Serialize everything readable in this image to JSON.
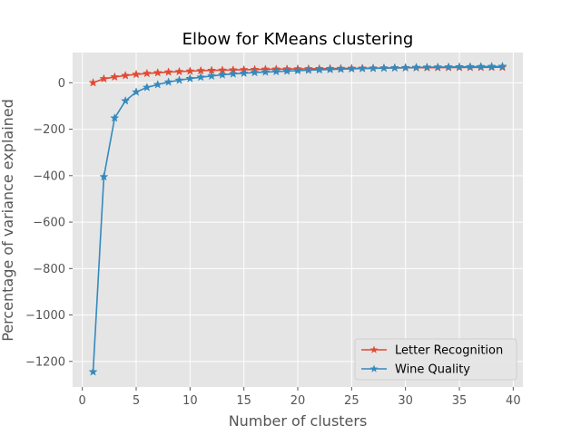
{
  "chart_data": {
    "type": "line",
    "title": "Elbow for KMeans clustering",
    "xlabel": "Number of clusters",
    "ylabel": "Percentage of variance explained",
    "xlim": [
      -0.9,
      40.9
    ],
    "ylim": [
      -1310,
      130
    ],
    "xticks": [
      0,
      5,
      10,
      15,
      20,
      25,
      30,
      35,
      40
    ],
    "yticks": [
      0,
      -200,
      -400,
      -600,
      -800,
      -1000,
      -1200
    ],
    "ytick_labels": [
      "0",
      "−200",
      "−400",
      "−600",
      "−800",
      "−1000",
      "−1200"
    ],
    "grid": true,
    "legend_position": "lower-right",
    "x": [
      1,
      2,
      3,
      4,
      5,
      6,
      7,
      8,
      9,
      10,
      11,
      12,
      13,
      14,
      15,
      16,
      17,
      18,
      19,
      20,
      21,
      22,
      23,
      24,
      25,
      26,
      27,
      28,
      29,
      30,
      31,
      32,
      33,
      34,
      35,
      36,
      37,
      38,
      39
    ],
    "series": [
      {
        "name": "Letter Recognition",
        "color": "#E24A33",
        "marker": "star",
        "values": [
          0,
          17,
          25,
          31,
          36,
          40,
          43,
          46,
          48,
          50,
          52,
          53,
          54,
          55,
          56,
          57,
          58,
          58.5,
          59,
          59.5,
          60,
          60.5,
          61,
          61.5,
          62,
          62.5,
          63,
          63.5,
          64,
          64.3,
          64.6,
          64.9,
          65.2,
          65.5,
          65.8,
          66,
          66.2,
          66.4,
          66.6
        ]
      },
      {
        "name": "Wine Quality",
        "color": "#348ABD",
        "marker": "star",
        "values": [
          -1245,
          -405,
          -152,
          -78,
          -40,
          -20,
          -8,
          3,
          11,
          18,
          24,
          29,
          34,
          38,
          41,
          44,
          46,
          48,
          50,
          52,
          54,
          55.5,
          57,
          58.5,
          60,
          61,
          62,
          63,
          64,
          65,
          66,
          67,
          67.5,
          68,
          68.5,
          69,
          69.5,
          70,
          70.5
        ]
      }
    ]
  }
}
